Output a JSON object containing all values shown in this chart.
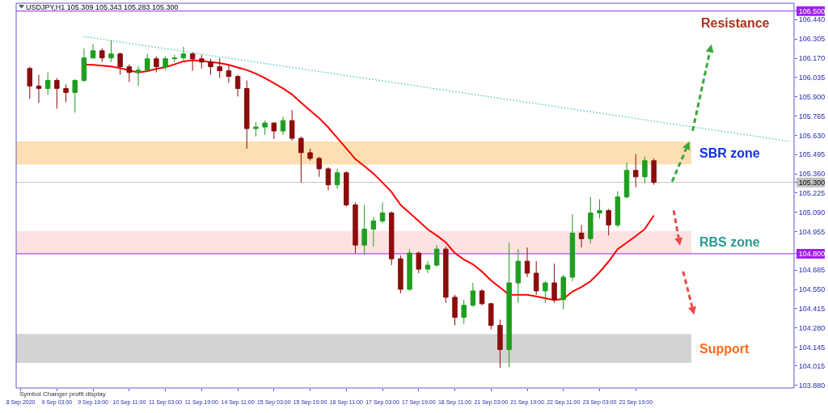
{
  "chart_data": {
    "type": "candlestick",
    "title": "USDJPY,H1 105.309 105.343 105.283 105.300",
    "categories": [
      "8 Sep 2020",
      null,
      null,
      null,
      "9 Sep 03:00",
      null,
      null,
      null,
      "9 Sep 19:00",
      null,
      null,
      null,
      "10 Sep 11:00",
      null,
      null,
      null,
      "11 Sep 03:00",
      null,
      null,
      null,
      "11 Sep 19:00",
      null,
      null,
      null,
      "14 Sep 11:00",
      null,
      null,
      null,
      "15 Sep 03:00",
      null,
      null,
      null,
      "15 Sep 19:00",
      null,
      null,
      null,
      "16 Sep 11:00",
      null,
      null,
      null,
      "17 Sep 03:00",
      null,
      null,
      null,
      "17 Sep 19:00",
      null,
      null,
      null,
      "18 Sep 11:00",
      null,
      null,
      null,
      "21 Sep 03:00",
      null,
      null,
      null,
      "21 Sep 19:00",
      null,
      null,
      null,
      "22 Sep 11:00",
      null,
      null,
      null,
      "23 Sep 03:00",
      null,
      null,
      null,
      "23 Sep 19:00",
      null,
      null,
      null,
      null,
      null,
      null,
      null,
      null,
      null,
      null,
      null,
      null,
      null,
      null,
      null,
      null,
      null
    ],
    "ohlc": [
      null,
      [
        106.098,
        106.11,
        105.885,
        105.975
      ],
      [
        105.975,
        106.053,
        105.857,
        105.958
      ],
      [
        105.958,
        106.07,
        105.913,
        106.014
      ],
      [
        106.014,
        106.031,
        105.817,
        105.958
      ],
      [
        105.958,
        105.986,
        105.862,
        105.93
      ],
      [
        105.93,
        106.025,
        105.789,
        106.014
      ],
      [
        106.014,
        106.239,
        106.003,
        106.172
      ],
      [
        106.172,
        106.267,
        106.166,
        106.222
      ],
      [
        106.222,
        106.239,
        106.143,
        106.172
      ],
      [
        106.172,
        106.295,
        106.143,
        106.2
      ],
      [
        106.2,
        106.211,
        106.053,
        106.11
      ],
      [
        106.11,
        106.127,
        106.003,
        106.07
      ],
      [
        106.07,
        106.115,
        105.975,
        106.087
      ],
      [
        106.087,
        106.2,
        106.082,
        106.166
      ],
      [
        106.166,
        106.183,
        106.07,
        106.11
      ],
      [
        106.11,
        106.183,
        106.087,
        106.166
      ],
      [
        106.166,
        106.194,
        106.143,
        106.172
      ],
      [
        106.172,
        106.25,
        106.155,
        106.2
      ],
      [
        106.2,
        106.211,
        106.082,
        106.166
      ],
      [
        106.166,
        106.194,
        106.098,
        106.143
      ],
      [
        106.143,
        106.166,
        106.053,
        106.11
      ],
      [
        106.11,
        106.172,
        106.031,
        106.082
      ],
      [
        106.082,
        106.127,
        105.997,
        106.042
      ],
      [
        106.042,
        106.053,
        105.902,
        105.958
      ],
      [
        105.958,
        106.014,
        105.536,
        105.677
      ],
      [
        105.677,
        105.722,
        105.621,
        105.688
      ],
      [
        105.688,
        105.733,
        105.632,
        105.716
      ],
      [
        105.716,
        105.722,
        105.603,
        105.66
      ],
      [
        105.66,
        105.761,
        105.632,
        105.733
      ],
      [
        105.733,
        105.806,
        105.592,
        105.609
      ],
      [
        105.609,
        105.621,
        105.3,
        105.508
      ],
      [
        105.508,
        105.536,
        105.452,
        105.468
      ],
      [
        105.468,
        105.48,
        105.339,
        105.395
      ],
      [
        105.395,
        105.407,
        105.243,
        105.283
      ],
      [
        105.283,
        105.395,
        105.255,
        105.367
      ],
      [
        105.367,
        105.378,
        105.131,
        105.142
      ],
      [
        105.142,
        105.159,
        104.805,
        104.861
      ],
      [
        104.861,
        105.142,
        104.793,
        104.973
      ],
      [
        104.973,
        105.058,
        104.85,
        105.03
      ],
      [
        105.03,
        105.159,
        105.013,
        105.086
      ],
      [
        105.086,
        105.097,
        104.72,
        104.765
      ],
      [
        104.765,
        104.788,
        104.523,
        104.551
      ],
      [
        104.551,
        104.833,
        104.54,
        104.805
      ],
      [
        104.805,
        104.816,
        104.664,
        104.692
      ],
      [
        104.692,
        104.748,
        104.664,
        104.72
      ],
      [
        104.72,
        104.861,
        104.709,
        104.833
      ],
      [
        104.833,
        104.85,
        104.456,
        104.495
      ],
      [
        104.495,
        104.512,
        104.298,
        104.354
      ],
      [
        104.354,
        104.478,
        104.309,
        104.439
      ],
      [
        104.439,
        104.596,
        104.428,
        104.54
      ],
      [
        104.54,
        104.551,
        104.439,
        104.45
      ],
      [
        104.45,
        104.456,
        104.27,
        104.298
      ],
      [
        104.298,
        104.338,
        104.0,
        104.129
      ],
      [
        104.129,
        104.878,
        104.006,
        104.596
      ],
      [
        104.596,
        104.833,
        104.456,
        104.748
      ],
      [
        104.748,
        104.844,
        104.636,
        104.664
      ],
      [
        104.664,
        104.748,
        104.512,
        104.54
      ],
      [
        104.54,
        104.608,
        104.456,
        104.596
      ],
      [
        104.596,
        104.731,
        104.456,
        104.478
      ],
      [
        104.478,
        104.653,
        104.411,
        104.636
      ],
      [
        104.636,
        105.075,
        104.608,
        104.945
      ],
      [
        104.945,
        105.002,
        104.844,
        104.906
      ],
      [
        104.906,
        105.198,
        104.872,
        105.086
      ],
      [
        105.086,
        105.182,
        105.047,
        105.103
      ],
      [
        105.103,
        105.114,
        104.928,
        105.002
      ],
      [
        105.002,
        105.238,
        104.985,
        105.198
      ],
      [
        105.198,
        105.44,
        105.187,
        105.384
      ],
      [
        105.384,
        105.497,
        105.266,
        105.339
      ],
      [
        105.339,
        105.48,
        105.294,
        105.452
      ],
      [
        105.452,
        105.468,
        105.283,
        105.3
      ],
      null,
      null,
      null,
      null,
      null,
      null,
      null,
      null,
      null,
      null,
      null,
      null,
      null,
      null,
      null
    ],
    "colors": [
      null,
      "#8b0d0d",
      "#8b0d0d",
      "#1f9e1f",
      "#8b0d0d",
      "#8b0d0d",
      "#1f9e1f",
      "#1f9e1f",
      "#1f9e1f",
      "#8b0d0d",
      "#1f9e1f",
      "#8b0d0d",
      "#8b0d0d",
      "#1f9e1f",
      "#1f9e1f",
      "#8b0d0d",
      "#1f9e1f",
      "#1f9e1f",
      "#1f9e1f",
      "#8b0d0d",
      "#8b0d0d",
      "#8b0d0d",
      "#8b0d0d",
      "#8b0d0d",
      "#8b0d0d",
      "#8b0d0d",
      "#1f9e1f",
      "#1f9e1f",
      "#8b0d0d",
      "#1f9e1f",
      "#8b0d0d",
      "#8b0d0d",
      "#8b0d0d",
      "#8b0d0d",
      "#8b0d0d",
      "#1f9e1f",
      "#8b0d0d",
      "#8b0d0d",
      "#1f9e1f",
      "#1f9e1f",
      "#1f9e1f",
      "#8b0d0d",
      "#8b0d0d",
      "#1f9e1f",
      "#8b0d0d",
      "#1f9e1f",
      "#1f9e1f",
      "#8b0d0d",
      "#8b0d0d",
      "#1f9e1f",
      "#1f9e1f",
      "#8b0d0d",
      "#8b0d0d",
      "#8b0d0d",
      "#1f9e1f",
      "#1f9e1f",
      "#8b0d0d",
      "#8b0d0d",
      "#1f9e1f",
      "#8b0d0d",
      "#1f9e1f",
      "#1f9e1f",
      "#8b0d0d",
      "#1f9e1f",
      "#1f9e1f",
      "#8b0d0d",
      "#1f9e1f",
      "#1f9e1f",
      "#8b0d0d",
      "#1f9e1f",
      "#8b0d0d",
      null,
      null,
      null,
      null,
      null,
      null,
      null,
      null,
      null,
      null,
      null,
      null,
      null,
      null,
      null
    ],
    "series": [
      {
        "type": "line",
        "color": "#ff0000",
        "values": [
          null,
          null,
          null,
          null,
          null,
          null,
          null,
          106.126,
          106.123,
          106.118,
          106.112,
          106.1,
          106.085,
          106.069,
          106.079,
          106.095,
          106.108,
          106.127,
          106.148,
          106.156,
          106.151,
          106.143,
          106.136,
          106.123,
          106.105,
          106.087,
          106.062,
          106.03,
          105.995,
          105.958,
          105.916,
          105.859,
          105.804,
          105.75,
          105.686,
          105.612,
          105.538,
          105.463,
          105.414,
          105.362,
          105.299,
          105.232,
          105.142,
          105.086,
          105.029,
          104.971,
          104.928,
          104.879,
          104.805,
          104.76,
          104.726,
          104.675,
          104.613,
          104.563,
          104.512,
          104.512,
          104.512,
          104.501,
          104.489,
          104.476,
          104.484,
          104.535,
          104.567,
          104.607,
          104.671,
          104.746,
          104.833,
          104.878,
          104.924,
          104.973,
          105.069,
          null,
          null,
          null,
          null,
          null,
          null,
          null,
          null,
          null,
          null,
          null,
          null,
          null,
          null,
          null
        ]
      },
      {
        "type": "line",
        "color": "#66cccc",
        "line_style": "dotted",
        "values": [
          null,
          null,
          null,
          null,
          null,
          null,
          null,
          106.321,
          null,
          null,
          null,
          null,
          null,
          null,
          null,
          null,
          null,
          null,
          null,
          null,
          null,
          null,
          null,
          null,
          null,
          null,
          null,
          null,
          null,
          null,
          null,
          null,
          null,
          null,
          null,
          null,
          null,
          null,
          null,
          null,
          null,
          null,
          null,
          null,
          null,
          null,
          null,
          null,
          null,
          null,
          null,
          null,
          null,
          null,
          null,
          null,
          null,
          null,
          null,
          null,
          null,
          null,
          null,
          null,
          null,
          null,
          null,
          null,
          null,
          null,
          null,
          null,
          null,
          null,
          null,
          null,
          null,
          null,
          null,
          null,
          null,
          null,
          null,
          null,
          null,
          105.588
        ]
      }
    ],
    "ylim": [
      103.86,
      106.555
    ],
    "yticks": [
      {
        "value": 103.88,
        "label": "103.880"
      },
      104.015,
      104.145,
      {
        "value": 104.28,
        "label": "104.280"
      },
      104.415,
      {
        "value": 104.55,
        "label": "104.550"
      },
      104.685,
      {
        "value": 104.8,
        "label": "104.800"
      },
      104.955,
      {
        "value": 105.09,
        "label": "105.090"
      },
      105.225,
      {
        "value": 105.3,
        "label": "105.300"
      },
      {
        "value": 105.36,
        "label": "105.360"
      },
      105.495,
      {
        "value": 105.63,
        "label": "105.630"
      },
      105.765,
      {
        "value": 105.9,
        "label": "105.900"
      },
      106.035,
      {
        "value": 106.17,
        "label": "106.170"
      },
      106.305,
      {
        "value": 106.44,
        "label": "106.440"
      },
      {
        "value": 106.5,
        "label": "106.500"
      }
    ],
    "ref_lines": [
      {
        "axis": "y",
        "value": 106.5,
        "label": "Resistance",
        "color": "#a020f0"
      },
      {
        "axis": "y",
        "value": 104.8,
        "color": "#a020f0"
      },
      {
        "axis": "y",
        "value": 105.3,
        "color": "#c0c0c0"
      }
    ],
    "bands": [
      {
        "axis": "y",
        "from": 105.425,
        "to": 105.587,
        "label": "SBR zone",
        "color": "#fddfb2"
      },
      {
        "axis": "y",
        "from": 104.8,
        "to": 104.96,
        "label": "RBS zone",
        "color": "#fde2e2"
      },
      {
        "axis": "y",
        "from": 104.035,
        "to": 104.238,
        "label": "Support",
        "color": "#d3d3d3"
      }
    ],
    "annotations": [
      "Symbol Changer profit display"
    ]
  }
}
